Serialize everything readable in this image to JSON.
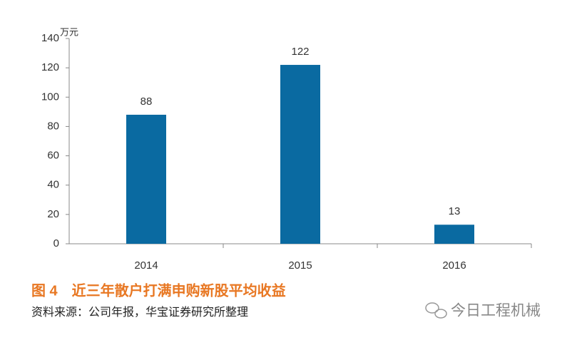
{
  "chart_data": {
    "type": "bar",
    "title": "图 4　近三年散户打满申购新股平均收益",
    "source": "资料来源：公司年报，华宝证券研究所整理",
    "watermark": "今日工程机械",
    "y_unit": "万元",
    "categories": [
      "2014",
      "2015",
      "2016"
    ],
    "values": [
      88,
      122,
      13
    ],
    "color": "#0a6aa1",
    "ylim": [
      0,
      140
    ],
    "yticks": [
      0,
      20,
      40,
      60,
      80,
      100,
      120,
      140
    ]
  }
}
